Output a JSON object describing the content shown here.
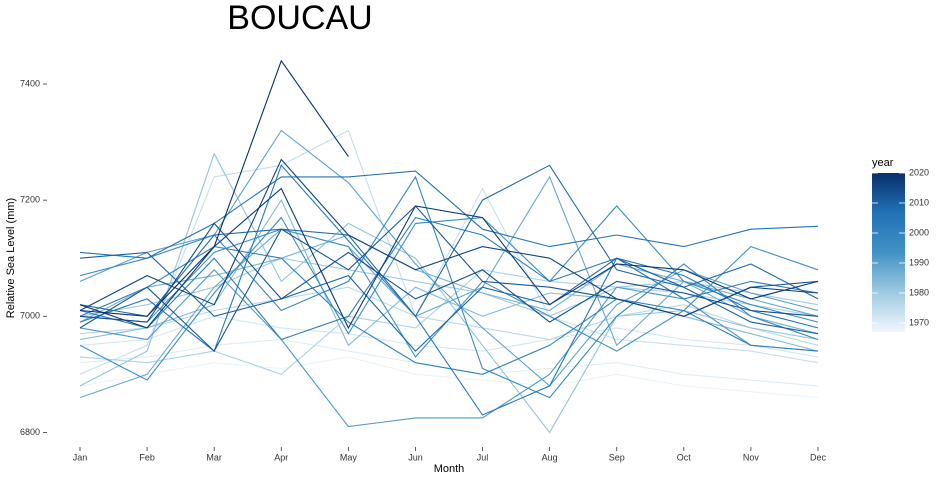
{
  "chart_data": {
    "type": "line",
    "title": "BOUCAU",
    "x_label": "Month",
    "y_label": "Relative Sea Level (mm)",
    "categories": [
      "Jan",
      "Feb",
      "Mar",
      "Apr",
      "May",
      "Jun",
      "Jul",
      "Aug",
      "Sep",
      "Oct",
      "Nov",
      "Dec"
    ],
    "ylim": [
      6780,
      7450
    ],
    "yticks": [
      6800,
      7000,
      7200,
      7400
    ],
    "grid": false,
    "legend_title": "year",
    "color_lim": [
      1967,
      2020
    ],
    "color_ticks": [
      1970,
      1980,
      1990,
      2000,
      2010,
      2020
    ],
    "color_scale": [
      "#f1f7fd",
      "#9ecae1",
      "#4292c6",
      "#2171b5",
      "#08306b"
    ],
    "series": [
      {
        "year": 1968,
        "values": [
          6880,
          6900,
          6920,
          6910,
          6930,
          6900,
          6890,
          6880,
          6900,
          6880,
          6870,
          6860
        ]
      },
      {
        "year": 1970,
        "values": [
          6920,
          6930,
          6950,
          6960,
          6940,
          6920,
          6900,
          6910,
          6920,
          6900,
          6890,
          6880
        ]
      },
      {
        "year": 1972,
        "values": [
          6950,
          6960,
          7000,
          6980,
          6970,
          6950,
          6940,
          6960,
          6980,
          6960,
          6950,
          6930
        ]
      },
      {
        "year": 1974,
        "values": [
          6900,
          6950,
          7240,
          7260,
          7320,
          7000,
          7220,
          7000,
          6960,
          6950,
          6940,
          6920
        ]
      },
      {
        "year": 1976,
        "values": [
          6970,
          6980,
          7010,
          7030,
          7050,
          7000,
          6980,
          6960,
          7000,
          7020,
          6980,
          6950
        ]
      },
      {
        "year": 1978,
        "values": [
          6930,
          6920,
          6940,
          6900,
          7000,
          6980,
          7080,
          7060,
          7050,
          7040,
          7020,
          7000
        ]
      },
      {
        "year": 1980,
        "values": [
          7000,
          7020,
          7050,
          7100,
          7080,
          7060,
          7040,
          7000,
          7050,
          7060,
          7040,
          7020
        ]
      },
      {
        "year": 1982,
        "values": [
          6880,
          6940,
          7280,
          7060,
          7160,
          7100,
          6950,
          6800,
          7000,
          7010,
          6980,
          6960
        ]
      },
      {
        "year": 1984,
        "values": [
          6960,
          6980,
          7020,
          7200,
          6950,
          7050,
          7000,
          7040,
          7030,
          7000,
          6970,
          6940
        ]
      },
      {
        "year": 1986,
        "values": [
          6990,
          7050,
          7070,
          7100,
          7140,
          7080,
          7040,
          7010,
          7090,
          7060,
          7000,
          6970
        ]
      },
      {
        "year": 1988,
        "values": [
          6860,
          6900,
          7050,
          7150,
          7120,
          7000,
          7050,
          7240,
          6950,
          7060,
          7030,
          7000
        ]
      },
      {
        "year": 1990,
        "values": [
          7060,
          7110,
          7140,
          7320,
          7230,
          7090,
          6980,
          6880,
          7020,
          7080,
          7040,
          7010
        ]
      },
      {
        "year": 1992,
        "values": [
          6980,
          6960,
          7080,
          6960,
          6810,
          6825,
          6825,
          6900,
          7050,
          7030,
          6950,
          6940
        ]
      },
      {
        "year": 1994,
        "values": [
          7000,
          6990,
          7110,
          7150,
          7120,
          6930,
          7060,
          7000,
          6940,
          7010,
          7120,
          7080
        ]
      },
      {
        "year": 1996,
        "values": [
          6950,
          6890,
          7040,
          7170,
          6970,
          7160,
          7170,
          7060,
          7190,
          7060,
          7020,
          6990
        ]
      },
      {
        "year": 1998,
        "values": [
          7070,
          7100,
          7140,
          7010,
          7060,
          7240,
          6910,
          6860,
          7000,
          7090,
          7000,
          6960
        ]
      },
      {
        "year": 2000,
        "values": [
          7000,
          7050,
          7120,
          7100,
          6990,
          6920,
          6900,
          6950,
          7030,
          7010,
          6950,
          6940
        ]
      },
      {
        "year": 2002,
        "values": [
          7010,
          6980,
          7100,
          6960,
          7000,
          7170,
          7140,
          7060,
          7100,
          7030,
          7060,
          7040
        ]
      },
      {
        "year": 2004,
        "values": [
          6990,
          7030,
          6940,
          7260,
          7130,
          7000,
          6830,
          6880,
          7100,
          7070,
          7010,
          6980
        ]
      },
      {
        "year": 2006,
        "values": [
          7110,
          7100,
          7160,
          7240,
          7240,
          7250,
          7150,
          7120,
          7140,
          7120,
          7150,
          7155
        ]
      },
      {
        "year": 2008,
        "values": [
          7020,
          7000,
          7140,
          7150,
          7140,
          7000,
          7200,
          7260,
          7080,
          7050,
          7090,
          7030
        ]
      },
      {
        "year": 2010,
        "values": [
          7100,
          7110,
          7000,
          7030,
          7070,
          6940,
          7050,
          7020,
          7100,
          7050,
          6990,
          6970
        ]
      },
      {
        "year": 2012,
        "values": [
          6980,
          7050,
          6940,
          7150,
          7080,
          7190,
          7060,
          7050,
          7030,
          7000,
          7050,
          7060
        ]
      },
      {
        "year": 2014,
        "values": [
          7000,
          6990,
          7160,
          7030,
          7110,
          7030,
          7080,
          6990,
          7060,
          7040,
          7010,
          7000
        ]
      },
      {
        "year": 2016,
        "values": [
          7010,
          7070,
          7020,
          7270,
          7140,
          7080,
          7120,
          7100,
          7030,
          7000,
          7050,
          7040
        ]
      },
      {
        "year": 2018,
        "values": [
          7020,
          6980,
          7120,
          7220,
          6980,
          7190,
          7170,
          7020,
          7090,
          7080,
          7030,
          7060
        ]
      },
      {
        "year": 2020,
        "values": [
          7010,
          7000,
          7120,
          7440,
          7275,
          null,
          null,
          null,
          null,
          null,
          null,
          null
        ]
      }
    ]
  }
}
